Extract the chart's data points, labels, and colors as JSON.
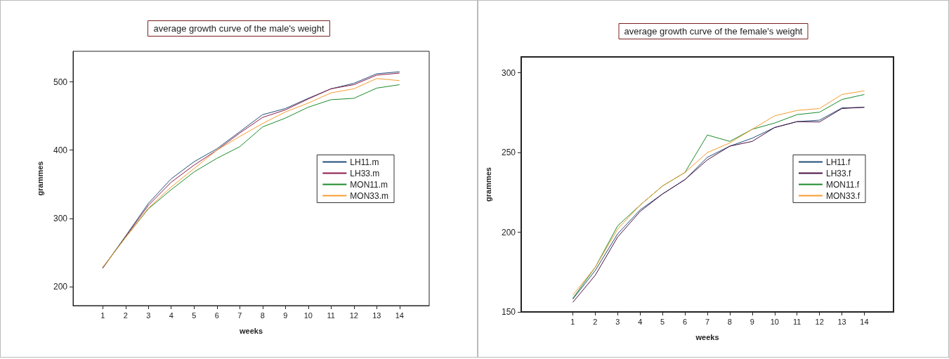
{
  "chart_data": [
    {
      "type": "line",
      "title": "average growth curve of the male's weight",
      "xlabel": "weeks",
      "ylabel": "grammes",
      "x": [
        1,
        2,
        3,
        4,
        5,
        6,
        7,
        8,
        9,
        10,
        11,
        12,
        13,
        14
      ],
      "xlim": [
        -0.3,
        15.3
      ],
      "xticks": [
        1,
        2,
        3,
        4,
        5,
        6,
        7,
        8,
        9,
        10,
        11,
        12,
        13,
        14
      ],
      "ylim": [
        172,
        545
      ],
      "yticks": [
        200,
        300,
        400,
        500
      ],
      "legend": "right",
      "marker": "none",
      "series": [
        {
          "name": "LH11.m",
          "color": "#1f4e79",
          "values": [
            227,
            274,
            322,
            358,
            383,
            402,
            427,
            452,
            461,
            476,
            490,
            498,
            512,
            515
          ]
        },
        {
          "name": "LH33.m",
          "color": "#8b1a4a",
          "values": [
            227,
            273,
            319,
            353,
            378,
            400,
            425,
            448,
            459,
            475,
            490,
            496,
            510,
            513
          ]
        },
        {
          "name": "MON11.m",
          "color": "#1a8a2a",
          "values": [
            228,
            272,
            314,
            342,
            368,
            388,
            405,
            434,
            447,
            463,
            474,
            476,
            491,
            496
          ]
        },
        {
          "name": "MON33.m",
          "color": "#f59b30",
          "values": [
            228,
            272,
            315,
            346,
            373,
            400,
            420,
            439,
            456,
            469,
            484,
            490,
            505,
            502
          ]
        }
      ]
    },
    {
      "type": "line",
      "title": "average growth curve of the female's weight",
      "xlabel": "weeks",
      "ylabel": "grammes",
      "x": [
        1,
        2,
        3,
        4,
        5,
        6,
        7,
        8,
        9,
        10,
        11,
        12,
        13,
        14
      ],
      "xlim": [
        -1.3,
        15.3
      ],
      "xticks": [
        1,
        2,
        3,
        4,
        5,
        6,
        7,
        8,
        9,
        10,
        11,
        12,
        13,
        14
      ],
      "ylim": [
        150,
        310
      ],
      "yticks": [
        150,
        200,
        250,
        300
      ],
      "legend": "right",
      "marker": "none",
      "series": [
        {
          "name": "LH11.f",
          "color": "#1f4e79",
          "values": [
            158,
            176,
            199,
            214,
            224,
            233,
            247,
            254,
            259,
            265.7,
            269.4,
            270.3,
            278,
            278.4
          ]
        },
        {
          "name": "LH33.f",
          "color": "#4b1040",
          "values": [
            156,
            173,
            197,
            213,
            224,
            233,
            245.4,
            254,
            257,
            265.7,
            269.4,
            269.2,
            277.6,
            278.4
          ]
        },
        {
          "name": "MON11.f",
          "color": "#1a8a2a",
          "values": [
            158.5,
            178,
            204,
            217,
            229,
            237.5,
            261,
            257,
            264.6,
            268.5,
            273.8,
            275.3,
            283.3,
            286.4
          ]
        },
        {
          "name": "MON33.f",
          "color": "#f59b30",
          "values": [
            160.5,
            178,
            202,
            217,
            229,
            237.5,
            250,
            256,
            264.6,
            273,
            276.4,
            277.6,
            286.4,
            288.7
          ]
        }
      ]
    }
  ]
}
